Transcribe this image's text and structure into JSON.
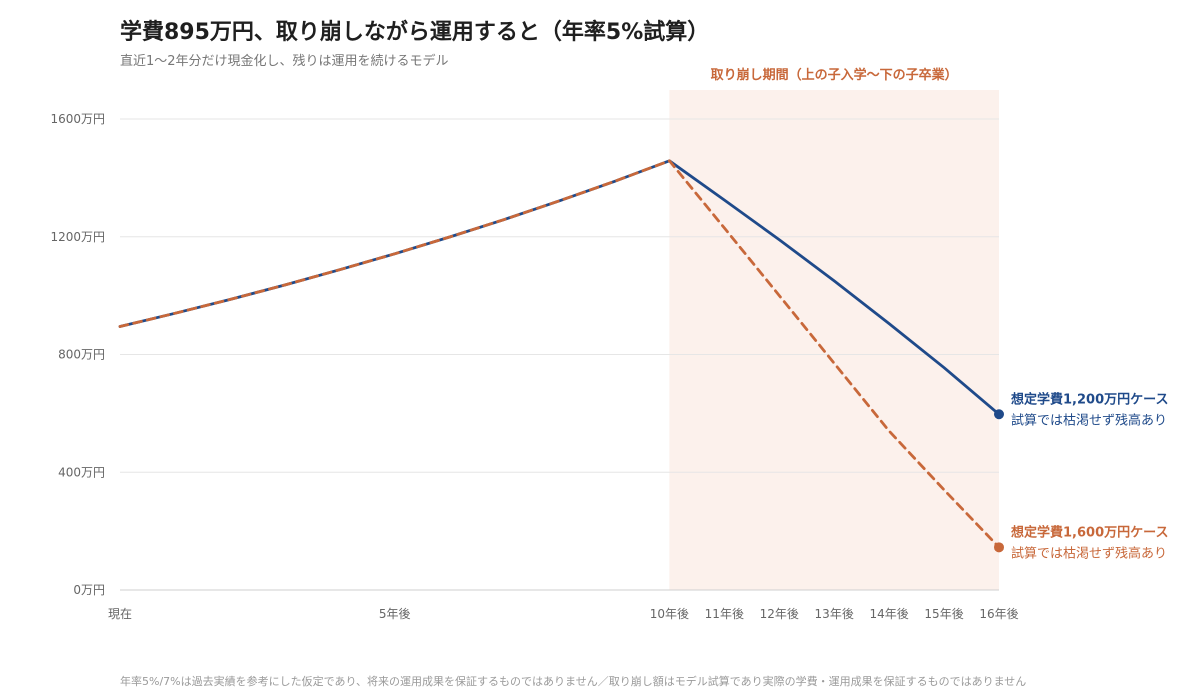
{
  "header": {
    "title": "学費895万円、取り崩しながら運用すると（年率5%試算）",
    "subtitle": "直近1〜2年分だけ現金化し、残りは運用を続けるモデル"
  },
  "footnote": "年率5%/7%は過去実績を参考にした仮定であり、将来の運用成果を保証するものではありません／取り崩し額はモデル試算であり実際の学費・運用成果を保証するものではありません",
  "chart_data": {
    "type": "line",
    "title": "学費895万円、取り崩しながら運用すると（年率5%試算）",
    "subtitle": "直近1〜2年分だけ現金化し、残りは運用を続けるモデル",
    "x": [
      0,
      1,
      2,
      3,
      4,
      5,
      6,
      7,
      8,
      9,
      10,
      11,
      12,
      13,
      14,
      15,
      16
    ],
    "x_tick_values": [
      0,
      5,
      10,
      11,
      12,
      13,
      14,
      15,
      16
    ],
    "x_tick_labels": [
      "現在",
      "5年後",
      "10年後",
      "11年後",
      "12年後",
      "13年後",
      "14年後",
      "15年後",
      "16年後"
    ],
    "y_ticks": [
      0,
      400,
      800,
      1200,
      1600
    ],
    "y_tick_labels": [
      "0万円",
      "400万円",
      "800万円",
      "1200万円",
      "1600万円"
    ],
    "ylim": [
      0,
      1600
    ],
    "xlim": [
      0,
      16
    ],
    "grid": "horizontal",
    "unit": "万円",
    "series": [
      {
        "name": "想定学費1,200万円ケース",
        "note": "試算では枯渇せず残高あり",
        "color": "#1f4a8a",
        "style": "solid",
        "values": [
          895,
          940,
          987,
          1036,
          1088,
          1142,
          1199,
          1259,
          1322,
          1388,
          1458,
          1325,
          1190,
          1050,
          905,
          755,
          597
        ]
      },
      {
        "name": "想定学費1,600万円ケース",
        "note": "試算では枯渇せず残高あり",
        "color": "#c8683a",
        "style": "dashed",
        "values": [
          895,
          940,
          987,
          1036,
          1088,
          1142,
          1199,
          1259,
          1322,
          1388,
          1458,
          1230,
          1000,
          770,
          540,
          340,
          145
        ]
      }
    ],
    "annotations": [
      {
        "type": "shaded_region",
        "x_from": 10,
        "x_to": 16,
        "label": "取り崩し期間（上の子入学〜下の子卒業）",
        "color": "#c8683a"
      }
    ]
  }
}
